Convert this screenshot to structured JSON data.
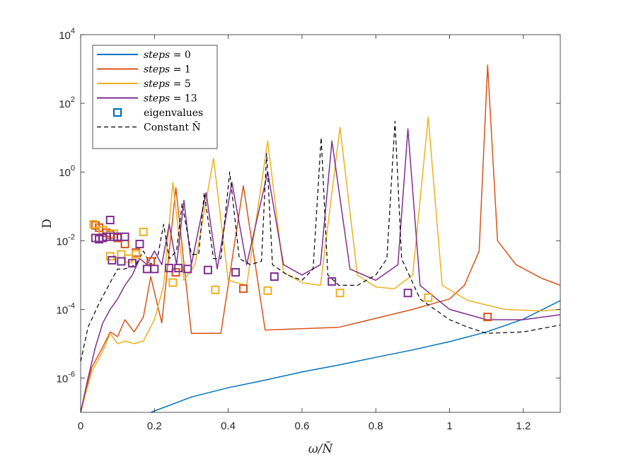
{
  "chart_data": {
    "type": "line",
    "title": "",
    "xlabel": "ω / N̄",
    "ylabel": "D",
    "yscale": "log",
    "xlim": [
      0,
      1.3
    ],
    "ylim": [
      1e-07,
      10000
    ],
    "xticks": [
      {
        "value": 0,
        "label": "0"
      },
      {
        "value": 0.2,
        "label": "0.2"
      },
      {
        "value": 0.4,
        "label": "0.4"
      },
      {
        "value": 0.6,
        "label": "0.6"
      },
      {
        "value": 0.8,
        "label": "0.8"
      },
      {
        "value": 1.0,
        "label": "1"
      },
      {
        "value": 1.2,
        "label": "1.2"
      }
    ],
    "yticks": [
      {
        "value": 1e-06,
        "base": "10",
        "exp": "-6"
      },
      {
        "value": 0.0001,
        "base": "10",
        "exp": "-4"
      },
      {
        "value": 0.01,
        "base": "10",
        "exp": "-2"
      },
      {
        "value": 1,
        "base": "10",
        "exp": "0"
      },
      {
        "value": 100,
        "base": "10",
        "exp": "2"
      },
      {
        "value": 10000,
        "base": "10",
        "exp": "4"
      }
    ],
    "legend_position": "top-left",
    "series": [
      {
        "name": "steps = 0",
        "legend_var": "steps",
        "legend_rhs": " = 0",
        "color": "#0072BD",
        "style": "solid",
        "x": [
          0.19,
          0.3,
          0.4,
          0.5,
          0.6,
          0.7,
          0.8,
          0.9,
          1.0,
          1.1,
          1.2,
          1.3
        ],
        "y": [
          1e-07,
          2.8e-07,
          5.2e-07,
          8.7e-07,
          1.5e-06,
          2.4e-06,
          4e-06,
          6.6e-06,
          1.15e-05,
          2.2e-05,
          5.2e-05,
          0.00018
        ]
      },
      {
        "name": "steps = 1",
        "legend_var": "steps",
        "legend_rhs": " = 1",
        "color": "#D95319",
        "style": "solid",
        "x": [
          0.0,
          0.03,
          0.06,
          0.08,
          0.1,
          0.12,
          0.145,
          0.17,
          0.19,
          0.22,
          0.258,
          0.3,
          0.38,
          0.441,
          0.5,
          0.7,
          0.9,
          1.0,
          1.04,
          1.08,
          1.103,
          1.13,
          1.18,
          1.25,
          1.3
        ],
        "y": [
          1e-07,
          2e-06,
          8e-06,
          2.2e-05,
          1.6e-05,
          5e-05,
          2.2e-05,
          6e-05,
          0.0009,
          4e-05,
          0.35,
          2e-05,
          2e-05,
          0.4,
          2.5e-05,
          3e-05,
          0.0001,
          0.0002,
          0.0005,
          0.005,
          1300,
          0.01,
          0.002,
          0.0008,
          0.0005
        ]
      },
      {
        "name": "steps = 5",
        "legend_var": "steps",
        "legend_rhs": " = 5",
        "color": "#EDB120",
        "style": "solid",
        "x": [
          0.0,
          0.03,
          0.06,
          0.08,
          0.1,
          0.12,
          0.145,
          0.17,
          0.2,
          0.225,
          0.25,
          0.28,
          0.31,
          0.36,
          0.4,
          0.45,
          0.507,
          0.55,
          0.6,
          0.65,
          0.703,
          0.75,
          0.8,
          0.85,
          0.9,
          0.942,
          0.98,
          1.05,
          1.15,
          1.25,
          1.3
        ],
        "y": [
          1e-07,
          1.5e-06,
          6e-06,
          2e-05,
          1e-05,
          1.2e-05,
          1e-05,
          1.2e-05,
          5e-05,
          0.0005,
          0.5,
          0.0007,
          0.002,
          2.5,
          0.0007,
          0.0005,
          8,
          0.0012,
          0.0006,
          0.0005,
          20,
          0.001,
          0.00045,
          0.0004,
          0.001,
          40,
          0.0005,
          0.00018,
          0.0001,
          9e-05,
          0.0001
        ]
      },
      {
        "name": "steps = 13",
        "legend_var": "steps",
        "legend_rhs": " = 13",
        "color": "#7E2F8E",
        "style": "solid",
        "x": [
          0.0,
          0.02,
          0.04,
          0.06,
          0.08,
          0.1,
          0.12,
          0.14,
          0.16,
          0.18,
          0.2,
          0.22,
          0.24,
          0.26,
          0.28,
          0.3,
          0.34,
          0.37,
          0.41,
          0.45,
          0.507,
          0.55,
          0.6,
          0.65,
          0.681,
          0.73,
          0.8,
          0.86,
          0.887,
          0.92,
          1.0,
          1.1,
          1.2,
          1.3
        ],
        "y": [
          1e-07,
          1e-06,
          8e-06,
          4e-05,
          0.0001,
          0.0002,
          0.0005,
          0.001,
          0.003,
          0.002,
          0.005,
          0.002,
          0.03,
          0.002,
          0.15,
          0.002,
          0.25,
          0.0015,
          0.5,
          0.002,
          1,
          0.002,
          0.001,
          0.002,
          8,
          0.0015,
          0.0007,
          0.002,
          18,
          0.0005,
          0.0001,
          5e-05,
          5e-05,
          7e-05
        ]
      },
      {
        "name": "Constant N̄",
        "legend_var": "",
        "legend_rhs": "Constant N̄",
        "color": "#000000",
        "style": "dashed",
        "x": [
          0.0,
          0.02,
          0.05,
          0.08,
          0.1,
          0.12,
          0.15,
          0.17,
          0.19,
          0.21,
          0.225,
          0.24,
          0.26,
          0.275,
          0.3,
          0.32,
          0.335,
          0.36,
          0.38,
          0.404,
          0.43,
          0.46,
          0.49,
          0.504,
          0.52,
          0.56,
          0.6,
          0.63,
          0.652,
          0.67,
          0.7,
          0.75,
          0.8,
          0.83,
          0.852,
          0.87,
          0.92,
          1.0,
          1.05,
          1.1,
          1.2,
          1.3
        ],
        "y": [
          3e-06,
          3e-05,
          0.00015,
          0.0006,
          0.0015,
          0.0015,
          0.002,
          0.005,
          0.002,
          0.004,
          0.03,
          0.003,
          0.005,
          0.12,
          0.004,
          0.004,
          0.25,
          0.003,
          0.003,
          1,
          0.003,
          0.002,
          0.0025,
          3.5,
          0.002,
          0.001,
          0.0007,
          0.0015,
          10,
          0.001,
          0.0005,
          0.0005,
          0.001,
          0.003,
          30,
          0.003,
          0.0002,
          5e-05,
          3e-05,
          2e-05,
          2.2e-05,
          3.5e-05
        ]
      }
    ],
    "eigenvalues": {
      "name": "eigenvalues",
      "marker": "square",
      "legend_color": "#0072BD",
      "groups": [
        {
          "series": "steps = 1",
          "color": "#D95319",
          "x": [
            0.04,
            0.05,
            0.06,
            0.07,
            0.08,
            0.1,
            0.12,
            0.15,
            0.19,
            0.258,
            0.441,
            1.103
          ],
          "y": [
            0.028,
            0.024,
            0.02,
            0.017,
            0.015,
            0.012,
            0.008,
            0.0045,
            0.0025,
            0.0012,
            0.0004,
            6e-05
          ]
        },
        {
          "series": "steps = 5",
          "color": "#EDB120",
          "x": [
            0.035,
            0.06,
            0.08,
            0.09,
            0.11,
            0.13,
            0.15,
            0.17,
            0.25,
            0.365,
            0.507,
            0.703,
            0.942
          ],
          "y": [
            0.03,
            0.02,
            0.0035,
            0.016,
            0.004,
            0.003,
            0.004,
            0.018,
            0.0006,
            0.00037,
            0.00035,
            0.0003,
            0.00022
          ]
        },
        {
          "series": "steps = 13",
          "color": "#7E2F8E",
          "x": [
            0.04,
            0.05,
            0.06,
            0.07,
            0.08,
            0.085,
            0.09,
            0.1,
            0.11,
            0.12,
            0.14,
            0.16,
            0.18,
            0.2,
            0.24,
            0.265,
            0.29,
            0.345,
            0.42,
            0.525,
            0.681,
            0.887
          ],
          "y": [
            0.012,
            0.011,
            0.012,
            0.013,
            0.04,
            0.0027,
            0.013,
            0.013,
            0.0025,
            0.013,
            0.0022,
            0.008,
            0.0015,
            0.0015,
            0.0016,
            0.0016,
            0.0015,
            0.0014,
            0.0012,
            0.0009,
            0.00065,
            0.0003
          ]
        }
      ]
    }
  }
}
